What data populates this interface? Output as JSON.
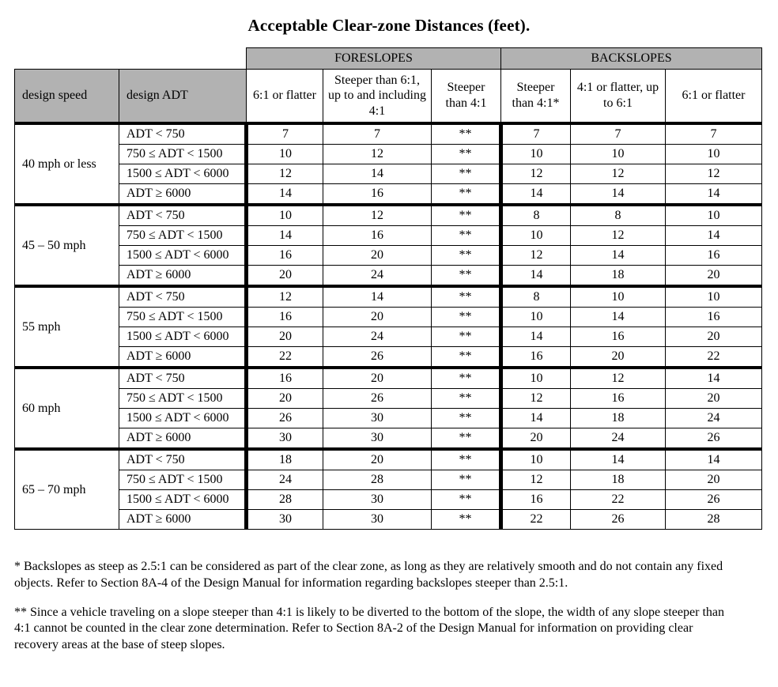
{
  "title": "Acceptable Clear-zone Distances (feet).",
  "table": {
    "foreslopes_label": "FORESLOPES",
    "backslopes_label": "BACKSLOPES",
    "design_speed_label": "design speed",
    "design_adt_label": "design ADT",
    "subheaders": [
      "6:1 or flatter",
      "Steeper than 6:1, up to and including 4:1",
      "Steeper than 4:1",
      "Steeper than 4:1*",
      "4:1 or flatter, up to 6:1",
      "6:1 or flatter"
    ],
    "groups": [
      {
        "speed": "40 mph or less",
        "rows": [
          {
            "adt": "ADT < 750",
            "values": [
              "7",
              "7",
              "**",
              "7",
              "7",
              "7"
            ]
          },
          {
            "adt": "750 ≤ ADT < 1500",
            "values": [
              "10",
              "12",
              "**",
              "10",
              "10",
              "10"
            ]
          },
          {
            "adt": "1500 ≤ ADT < 6000",
            "values": [
              "12",
              "14",
              "**",
              "12",
              "12",
              "12"
            ]
          },
          {
            "adt": "ADT ≥ 6000",
            "values": [
              "14",
              "16",
              "**",
              "14",
              "14",
              "14"
            ]
          }
        ]
      },
      {
        "speed": "45 – 50 mph",
        "rows": [
          {
            "adt": "ADT < 750",
            "values": [
              "10",
              "12",
              "**",
              "8",
              "8",
              "10"
            ]
          },
          {
            "adt": "750 ≤ ADT < 1500",
            "values": [
              "14",
              "16",
              "**",
              "10",
              "12",
              "14"
            ]
          },
          {
            "adt": "1500 ≤ ADT < 6000",
            "values": [
              "16",
              "20",
              "**",
              "12",
              "14",
              "16"
            ]
          },
          {
            "adt": "ADT ≥ 6000",
            "values": [
              "20",
              "24",
              "**",
              "14",
              "18",
              "20"
            ]
          }
        ]
      },
      {
        "speed": "55 mph",
        "rows": [
          {
            "adt": "ADT < 750",
            "values": [
              "12",
              "14",
              "**",
              "8",
              "10",
              "10"
            ]
          },
          {
            "adt": "750 ≤ ADT < 1500",
            "values": [
              "16",
              "20",
              "**",
              "10",
              "14",
              "16"
            ]
          },
          {
            "adt": "1500 ≤ ADT < 6000",
            "values": [
              "20",
              "24",
              "**",
              "14",
              "16",
              "20"
            ]
          },
          {
            "adt": "ADT ≥ 6000",
            "values": [
              "22",
              "26",
              "**",
              "16",
              "20",
              "22"
            ]
          }
        ]
      },
      {
        "speed": "60 mph",
        "rows": [
          {
            "adt": "ADT < 750",
            "values": [
              "16",
              "20",
              "**",
              "10",
              "12",
              "14"
            ]
          },
          {
            "adt": "750 ≤ ADT < 1500",
            "values": [
              "20",
              "26",
              "**",
              "12",
              "16",
              "20"
            ]
          },
          {
            "adt": "1500 ≤ ADT < 6000",
            "values": [
              "26",
              "30",
              "**",
              "14",
              "18",
              "24"
            ]
          },
          {
            "adt": "ADT ≥ 6000",
            "values": [
              "30",
              "30",
              "**",
              "20",
              "24",
              "26"
            ]
          }
        ]
      },
      {
        "speed": "65 – 70 mph",
        "rows": [
          {
            "adt": "ADT < 750",
            "values": [
              "18",
              "20",
              "**",
              "10",
              "14",
              "14"
            ]
          },
          {
            "adt": "750 ≤ ADT < 1500",
            "values": [
              "24",
              "28",
              "**",
              "12",
              "18",
              "20"
            ]
          },
          {
            "adt": "1500 ≤ ADT < 6000",
            "values": [
              "28",
              "30",
              "**",
              "16",
              "22",
              "26"
            ]
          },
          {
            "adt": "ADT ≥ 6000",
            "values": [
              "30",
              "30",
              "**",
              "22",
              "26",
              "28"
            ]
          }
        ]
      }
    ]
  },
  "footnotes": [
    "* Backslopes as steep as 2.5:1 can be considered as part of the clear zone, as long as they are relatively smooth and do not contain any fixed objects.  Refer to Section 8A-4 of the Design Manual for information regarding backslopes steeper than 2.5:1.",
    "** Since a vehicle traveling on a slope steeper than 4:1 is likely to be diverted to the bottom of the slope, the width of any slope steeper than 4:1 cannot be counted in the clear zone determination. Refer to Section 8A-2 of the Design Manual for information on providing clear recovery areas at the base of steep slopes."
  ],
  "colors": {
    "header_gray": "#b2b2b2",
    "border": "#000000"
  }
}
